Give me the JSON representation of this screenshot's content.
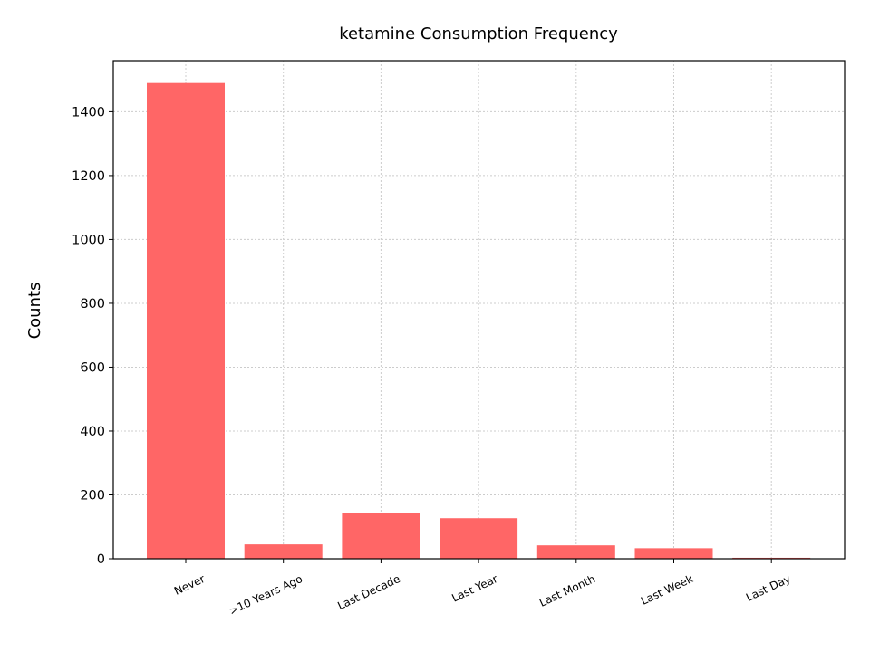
{
  "chart_data": {
    "type": "bar",
    "title": "ketamine Consumption Frequency",
    "xlabel": "",
    "ylabel": "Counts",
    "categories": [
      "Never",
      ">10 Years Ago",
      "Last Decade",
      "Last Year",
      "Last Month",
      "Last Week",
      "Last Day"
    ],
    "values": [
      1490,
      45,
      142,
      127,
      42,
      33,
      3
    ],
    "ylim": [
      0,
      1560
    ],
    "yticks": [
      0,
      200,
      400,
      600,
      800,
      1000,
      1200,
      1400
    ],
    "bar_color": "#ff6666",
    "grid": true
  }
}
